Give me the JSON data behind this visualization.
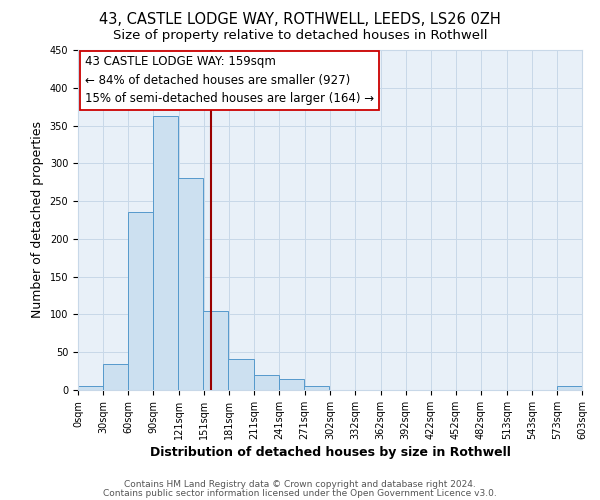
{
  "title": "43, CASTLE LODGE WAY, ROTHWELL, LEEDS, LS26 0ZH",
  "subtitle": "Size of property relative to detached houses in Rothwell",
  "xlabel": "Distribution of detached houses by size in Rothwell",
  "ylabel": "Number of detached properties",
  "bar_left_edges": [
    0,
    30,
    60,
    90,
    120,
    150,
    180,
    210,
    240,
    270,
    302,
    332,
    362,
    392,
    422,
    452,
    482,
    513,
    543,
    573
  ],
  "bar_heights": [
    5,
    35,
    235,
    363,
    281,
    105,
    41,
    20,
    15,
    5,
    0,
    0,
    0,
    0,
    0,
    0,
    0,
    0,
    0,
    5
  ],
  "bin_width": 30,
  "bar_facecolor": "#cce0f0",
  "bar_edgecolor": "#5599cc",
  "vline_x": 159,
  "vline_color": "#990000",
  "annotation_title": "43 CASTLE LODGE WAY: 159sqm",
  "annotation_line1": "← 84% of detached houses are smaller (927)",
  "annotation_line2": "15% of semi-detached houses are larger (164) →",
  "annotation_box_facecolor": "#ffffff",
  "annotation_box_edgecolor": "#cc0000",
  "xlim": [
    0,
    603
  ],
  "ylim": [
    0,
    450
  ],
  "xtick_labels": [
    "0sqm",
    "30sqm",
    "60sqm",
    "90sqm",
    "121sqm",
    "151sqm",
    "181sqm",
    "211sqm",
    "241sqm",
    "271sqm",
    "302sqm",
    "332sqm",
    "362sqm",
    "392sqm",
    "422sqm",
    "452sqm",
    "482sqm",
    "513sqm",
    "543sqm",
    "573sqm",
    "603sqm"
  ],
  "xtick_positions": [
    0,
    30,
    60,
    90,
    121,
    151,
    181,
    211,
    241,
    271,
    302,
    332,
    362,
    392,
    422,
    452,
    482,
    513,
    543,
    573,
    603
  ],
  "ytick_positions": [
    0,
    50,
    100,
    150,
    200,
    250,
    300,
    350,
    400,
    450
  ],
  "grid_color": "#c8d8e8",
  "bg_color": "#e8f0f8",
  "fig_bg_color": "#ffffff",
  "footer_line1": "Contains HM Land Registry data © Crown copyright and database right 2024.",
  "footer_line2": "Contains public sector information licensed under the Open Government Licence v3.0.",
  "title_fontsize": 10.5,
  "subtitle_fontsize": 9.5,
  "axis_label_fontsize": 9,
  "tick_fontsize": 7,
  "annotation_fontsize": 8.5,
  "footer_fontsize": 6.5
}
